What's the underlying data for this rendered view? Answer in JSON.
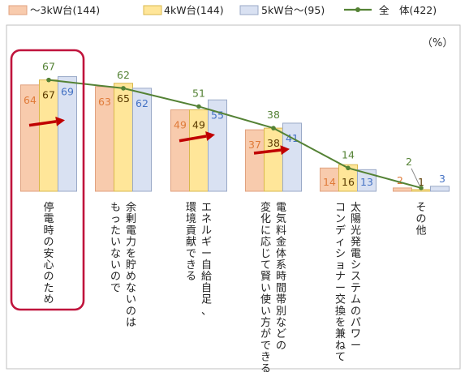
{
  "chart_data": {
    "type": "bar",
    "unit_label": "（%）",
    "categories": [
      [
        "停電時の安心のため"
      ],
      [
        "余剰電力を貯めないのは",
        "もったいないので"
      ],
      [
        "エネルギー自給自足、",
        "環境貢献できる"
      ],
      [
        "電気料金体系時間帯別などの",
        "変化に応じて賢い使い方ができる"
      ],
      [
        "太陽光発電システムのパワー",
        "コンディショナー交換を兼ねて"
      ],
      [
        "その他"
      ]
    ],
    "series": [
      {
        "name": "〜3kW台(144)",
        "values": [
          64,
          63,
          49,
          37,
          14,
          2
        ],
        "color": "#f8cbad",
        "edge": "#e0a27f",
        "label_color": "#e07b39"
      },
      {
        "name": "4kW台(144)",
        "values": [
          67,
          65,
          49,
          38,
          16,
          1
        ],
        "color": "#ffe699",
        "edge": "#d9b84d",
        "label_color": "#5a3a00"
      },
      {
        "name": "5kW台〜(95)",
        "values": [
          69,
          62,
          55,
          41,
          13,
          3
        ],
        "color": "#d9e1f2",
        "edge": "#9aa9c7",
        "label_color": "#4472c4"
      }
    ],
    "total": {
      "name": "全　体(422)",
      "values": [
        67,
        62,
        51,
        38,
        14,
        2
      ],
      "color": "#548235"
    },
    "ylim": [
      0,
      75
    ],
    "highlight_category": 0,
    "arrows_categories": [
      0,
      2,
      3
    ],
    "arrow_color": "#c00000"
  }
}
